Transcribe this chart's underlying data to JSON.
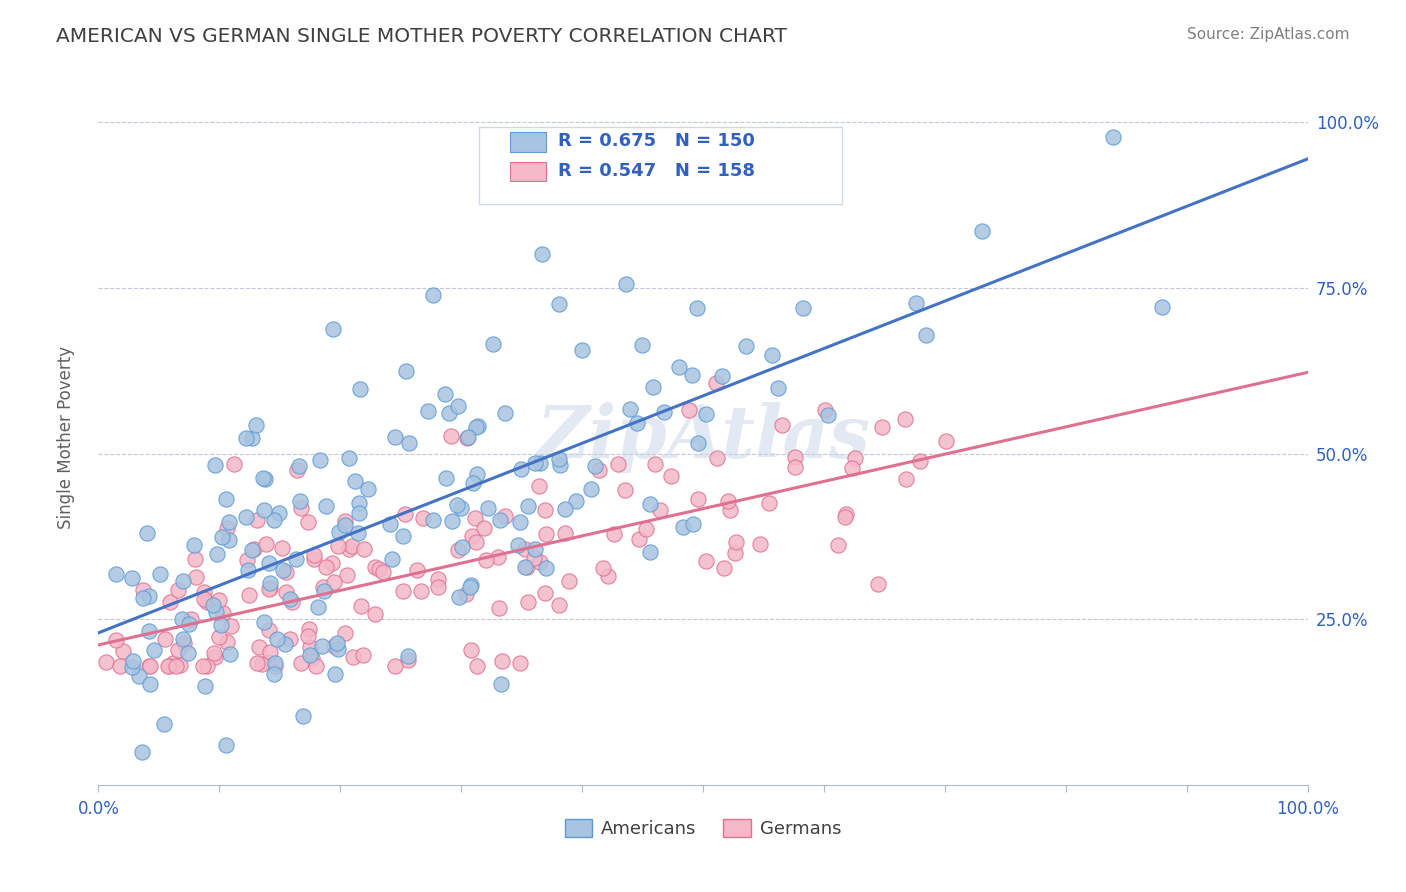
{
  "title": "AMERICAN VS GERMAN SINGLE MOTHER POVERTY CORRELATION CHART",
  "source": "Source: ZipAtlas.com",
  "xlabel": "",
  "ylabel": "Single Mother Poverty",
  "xlim": [
    0.0,
    1.0
  ],
  "ylim": [
    0.0,
    1.0
  ],
  "x_tick_labels": [
    "0.0%",
    "100.0%"
  ],
  "y_tick_labels": [
    "25.0%",
    "50.0%",
    "75.0%",
    "100.0%"
  ],
  "american_R": 0.675,
  "american_N": 150,
  "german_R": 0.547,
  "german_N": 158,
  "american_color": "#a8c4e0",
  "american_color_dark": "#5b9bd5",
  "german_color": "#f4b8c8",
  "german_color_dark": "#e07090",
  "regression_blue": "#4472c4",
  "regression_pink": "#e07090",
  "background_color": "#ffffff",
  "grid_color": "#c0c8d8",
  "title_color": "#404040",
  "watermark_color": "#c8d4e8",
  "legend_text_color": "#3060c0",
  "american_scatter_seed": 42,
  "german_scatter_seed": 123
}
